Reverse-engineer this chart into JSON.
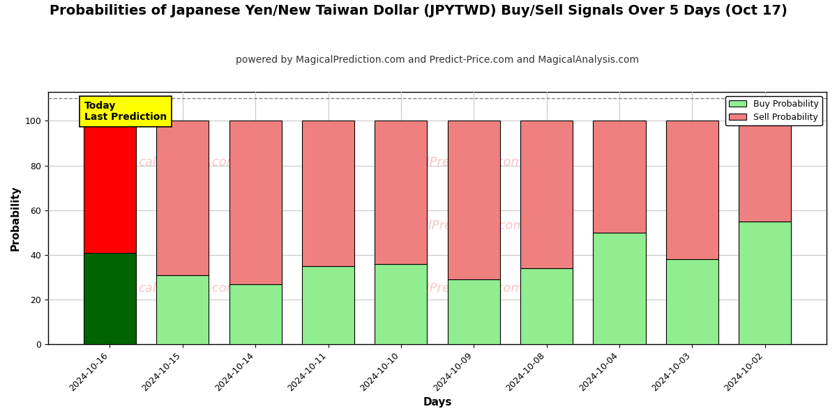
{
  "title": "Probabilities of Japanese Yen/New Taiwan Dollar (JPYTWD) Buy/Sell Signals Over 5 Days (Oct 17)",
  "subtitle": "powered by MagicalPrediction.com and Predict-Price.com and MagicalAnalysis.com",
  "xlabel": "Days",
  "ylabel": "Probability",
  "categories": [
    "2024-10-16",
    "2024-10-15",
    "2024-10-14",
    "2024-10-11",
    "2024-10-10",
    "2024-10-09",
    "2024-10-08",
    "2024-10-04",
    "2024-10-03",
    "2024-10-02"
  ],
  "buy_values": [
    41,
    31,
    27,
    35,
    36,
    29,
    34,
    50,
    38,
    55
  ],
  "sell_values": [
    59,
    69,
    73,
    65,
    64,
    71,
    66,
    50,
    62,
    45
  ],
  "buy_colors": [
    "#006400",
    "#90EE90",
    "#90EE90",
    "#90EE90",
    "#90EE90",
    "#90EE90",
    "#90EE90",
    "#90EE90",
    "#90EE90",
    "#90EE90"
  ],
  "sell_colors": [
    "#FF0000",
    "#F08080",
    "#F08080",
    "#F08080",
    "#F08080",
    "#F08080",
    "#F08080",
    "#F08080",
    "#F08080",
    "#F08080"
  ],
  "legend_buy_color": "#90EE90",
  "legend_sell_color": "#F08080",
  "ylim": [
    0,
    113
  ],
  "dashed_line_y": 110,
  "today_box_text": "Today\nLast Prediction",
  "today_box_color": "#FFFF00",
  "grid_color": "#C8C8C8",
  "bg_color": "#FFFFFF",
  "plot_bg_color": "#FFFFFF",
  "title_fontsize": 14,
  "subtitle_fontsize": 10,
  "axis_label_fontsize": 11,
  "tick_fontsize": 9,
  "bar_width": 0.72
}
